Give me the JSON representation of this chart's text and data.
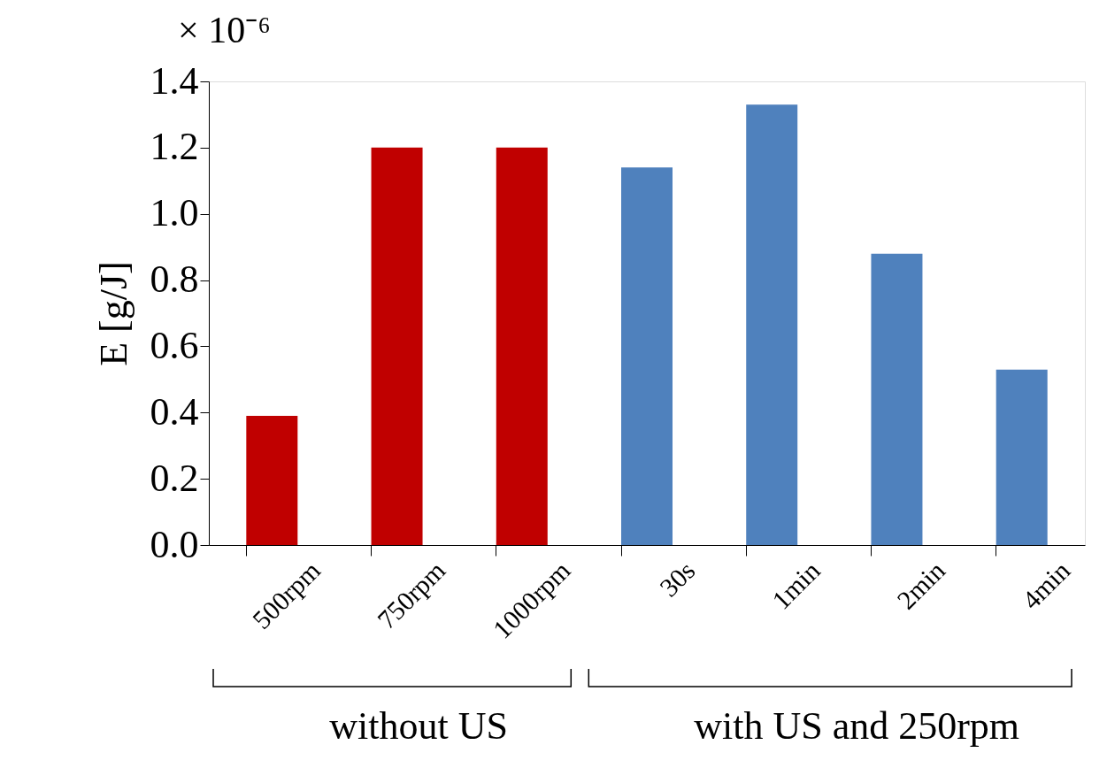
{
  "chart_data": {
    "type": "bar",
    "categories": [
      "500rpm",
      "750rpm",
      "1000rpm",
      "30s",
      "1min",
      "2min",
      "4min"
    ],
    "values": [
      0.39,
      1.2,
      1.2,
      1.14,
      1.33,
      0.88,
      0.53
    ],
    "colors": [
      "#c00000",
      "#c00000",
      "#c00000",
      "#4f81bd",
      "#4f81bd",
      "#4f81bd",
      "#4f81bd"
    ],
    "ylabel": "E [g/J]",
    "ylim": [
      0,
      1.4
    ],
    "yticks": [
      {
        "value": 0,
        "label": "0.0"
      },
      {
        "value": 0.2,
        "label": "0.2"
      },
      {
        "value": 0.4,
        "label": "0.4"
      },
      {
        "value": 0.6,
        "label": "0.6"
      },
      {
        "value": 0.8,
        "label": "0.8"
      },
      {
        "value": 1.0,
        "label": "1.0"
      },
      {
        "value": 1.2,
        "label": "1.2"
      },
      {
        "value": 1.4,
        "label": "1.4"
      }
    ],
    "annotations": [
      "× 10⁻⁶",
      "without US",
      "with US and 250rpm"
    ],
    "grid": false
  }
}
